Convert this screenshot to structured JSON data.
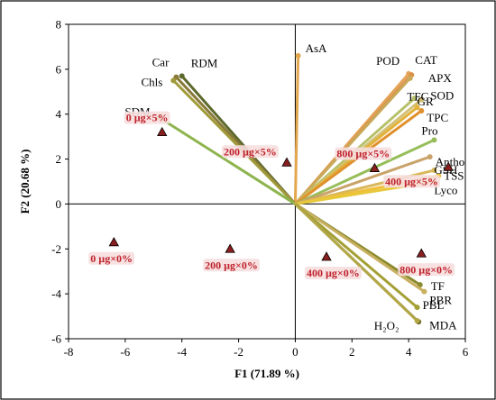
{
  "chart_data": {
    "type": "scatter",
    "title": "",
    "xlabel": "F1 (71.89 %)",
    "ylabel": "F2 (20.68 %)",
    "xlim": [
      -8,
      6
    ],
    "ylim": [
      -6,
      8
    ],
    "xticks": [
      -8,
      -6,
      -4,
      -2,
      0,
      2,
      4,
      6
    ],
    "yticks": [
      -6,
      -4,
      -2,
      0,
      2,
      4,
      6,
      8
    ],
    "grid": false,
    "loadings": [
      {
        "name": "AsA",
        "x": 0.1,
        "y": 6.6,
        "color": "#e3a74f"
      },
      {
        "name": "RDM",
        "x": -4.0,
        "y": 5.7,
        "color": "#5e6a2c"
      },
      {
        "name": "Car",
        "x": -4.2,
        "y": 5.65,
        "color": "#8a7a3a"
      },
      {
        "name": "Chls",
        "x": -4.3,
        "y": 5.5,
        "color": "#a09a3a"
      },
      {
        "name": "SDM",
        "x": -4.8,
        "y": 3.85,
        "color": "#8db44e"
      },
      {
        "name": "POD",
        "x": 4.0,
        "y": 5.8,
        "color": "#e6a45a"
      },
      {
        "name": "CAT",
        "x": 4.1,
        "y": 5.75,
        "color": "#d9914a"
      },
      {
        "name": "APX",
        "x": 4.05,
        "y": 5.6,
        "color": "#c9a95a"
      },
      {
        "name": "TFC",
        "x": 4.2,
        "y": 4.7,
        "color": "#b7c16a"
      },
      {
        "name": "SOD",
        "x": 4.45,
        "y": 4.65,
        "color": "#d4c075"
      },
      {
        "name": "GR",
        "x": 4.3,
        "y": 4.3,
        "color": "#e2b23a"
      },
      {
        "name": "TPC",
        "x": 4.45,
        "y": 4.15,
        "color": "#e0902e"
      },
      {
        "name": "Pro",
        "x": 4.9,
        "y": 2.85,
        "color": "#97be5a"
      },
      {
        "name": "Antho",
        "x": 4.75,
        "y": 2.1,
        "color": "#c9a36a"
      },
      {
        "name": "GSH",
        "x": 4.9,
        "y": 1.5,
        "color": "#d9b75a"
      },
      {
        "name": "TSS",
        "x": 5.05,
        "y": 1.25,
        "color": "#f0bf3a"
      },
      {
        "name": "Lyco",
        "x": 4.9,
        "y": 1.0,
        "color": "#e7c83a"
      },
      {
        "name": "TF",
        "x": 4.4,
        "y": -3.6,
        "color": "#8a8a2e"
      },
      {
        "name": "PBR",
        "x": 4.55,
        "y": -3.9,
        "color": "#c8b060"
      },
      {
        "name": "PBL",
        "x": 4.3,
        "y": -4.6,
        "color": "#a4a035"
      },
      {
        "name": "MDA",
        "x": 4.35,
        "y": -5.25,
        "color": "#6f6a2a"
      },
      {
        "name": "H₂O₂",
        "x": 4.3,
        "y": -5.2,
        "color": "#b3a845"
      }
    ],
    "samples": [
      {
        "name": "0 µg×5%",
        "x": -4.7,
        "y": 3.2
      },
      {
        "name": "200 µg×5%",
        "x": -0.3,
        "y": 1.85
      },
      {
        "name": "800 µg×5%",
        "x": 2.8,
        "y": 1.6
      },
      {
        "name": "400 µg×5%",
        "x": 5.4,
        "y": 1.65
      },
      {
        "name": "0 µg×0%",
        "x": -6.4,
        "y": -1.7
      },
      {
        "name": "200 µg×0%",
        "x": -2.3,
        "y": -2.0
      },
      {
        "name": "400 µg×0%",
        "x": 1.1,
        "y": -2.35
      },
      {
        "name": "800 µg×0%",
        "x": 4.45,
        "y": -2.2
      }
    ]
  }
}
